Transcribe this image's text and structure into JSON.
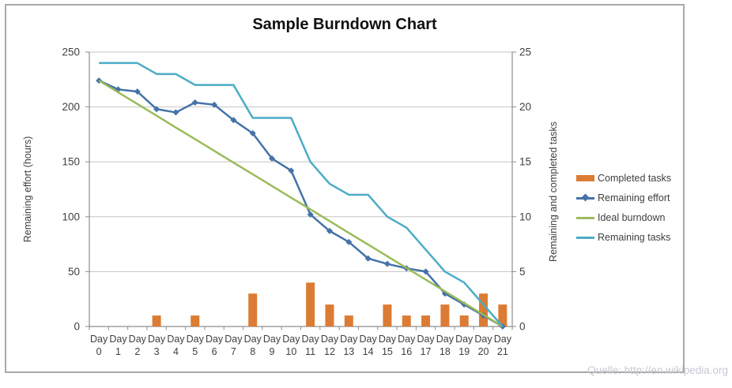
{
  "title": "Sample Burndown Chart",
  "footer": "Quelle: http://en.wikipedia.org",
  "axes": {
    "left_title": "Remaining effort (hours)",
    "right_title": "Remaining and completed tasks",
    "left_ticks": [
      0,
      50,
      100,
      150,
      200,
      250
    ],
    "right_ticks": [
      0,
      5,
      10,
      15,
      20,
      25
    ],
    "left_range": [
      0,
      250
    ],
    "right_range": [
      0,
      25
    ]
  },
  "legend": [
    {
      "label": "Completed tasks",
      "swatch": "bar",
      "color": "#dc7b33"
    },
    {
      "label": "Remaining effort",
      "swatch": "line-marker",
      "color": "#4572a7"
    },
    {
      "label": "Ideal burndown",
      "swatch": "line",
      "color": "#9bbb59"
    },
    {
      "label": "Remaining tasks",
      "swatch": "line",
      "color": "#4bacc6"
    }
  ],
  "chart_data": {
    "type": "combo",
    "title": "Sample Burndown Chart",
    "xlabel": "",
    "ylabel_left": "Remaining effort (hours)",
    "ylabel_right": "Remaining and completed tasks",
    "ylim_left": [
      0,
      250
    ],
    "ylim_right": [
      0,
      25
    ],
    "grid": "horizontal",
    "legend_position": "right",
    "categories": [
      "Day 0",
      "Day 1",
      "Day 2",
      "Day 3",
      "Day 4",
      "Day 5",
      "Day 6",
      "Day 7",
      "Day 8",
      "Day 9",
      "Day 10",
      "Day 11",
      "Day 12",
      "Day 13",
      "Day 14",
      "Day 15",
      "Day 16",
      "Day 17",
      "Day 18",
      "Day 19",
      "Day 20",
      "Day 21"
    ],
    "series": [
      {
        "name": "Completed tasks",
        "type": "bar",
        "axis": "right",
        "color": "#dc7b33",
        "values": [
          0,
          0,
          0,
          1,
          0,
          1,
          0,
          0,
          3,
          0,
          0,
          4,
          2,
          1,
          0,
          2,
          1,
          1,
          2,
          1,
          3,
          2
        ]
      },
      {
        "name": "Remaining effort",
        "type": "line",
        "marker": "diamond",
        "axis": "left",
        "color": "#4572a7",
        "values": [
          224,
          216,
          214,
          198,
          195,
          204,
          202,
          188,
          176,
          153,
          142,
          102,
          87,
          77,
          62,
          57,
          53,
          50,
          30,
          20,
          10,
          0
        ]
      },
      {
        "name": "Ideal burndown",
        "type": "line",
        "axis": "left",
        "color": "#9bbb59",
        "values": [
          224,
          213.3,
          202.7,
          192,
          181.3,
          170.7,
          160,
          149.3,
          138.7,
          128,
          117.3,
          106.7,
          96,
          85.3,
          74.7,
          64,
          53.3,
          42.7,
          32,
          21.3,
          10.7,
          0
        ]
      },
      {
        "name": "Remaining tasks",
        "type": "line",
        "axis": "right",
        "color": "#4bacc6",
        "values": [
          24,
          24,
          24,
          23,
          23,
          22,
          22,
          22,
          19,
          19,
          19,
          15,
          13,
          12,
          12,
          10,
          9,
          7,
          5,
          4,
          2,
          0
        ]
      }
    ]
  }
}
